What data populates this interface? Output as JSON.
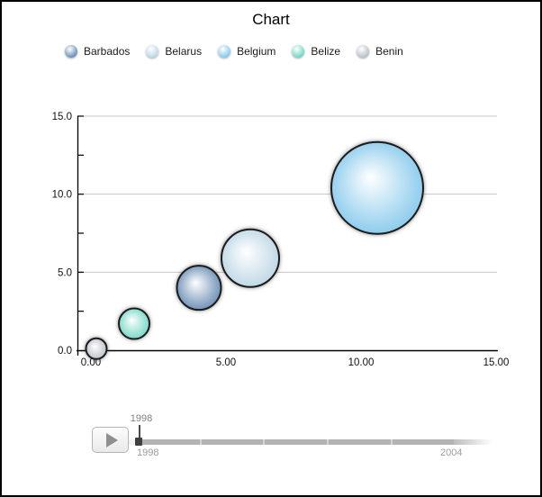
{
  "window": {
    "title": "Chart"
  },
  "colors": {
    "grid": "#c6c6c6",
    "axis": "#000000",
    "track": "#b3b3b3",
    "handle": "#3f3f3f"
  },
  "chart_data": {
    "type": "bubble",
    "title": "Chart",
    "xlabel": "",
    "ylabel": "",
    "x_ticks": [
      "0.00",
      "5.00",
      "10.00",
      "15.00"
    ],
    "y_ticks": [
      "0.0",
      "5.0",
      "10.0",
      "15.0"
    ],
    "xlim": [
      -0.5,
      15.0
    ],
    "ylim": [
      0,
      15.0
    ],
    "grid": true,
    "legend_position": "top",
    "series": [
      {
        "name": "Barbados",
        "x": 4.0,
        "y": 4.0,
        "radius_px": 24.5,
        "color": "#5b82ad"
      },
      {
        "name": "Belarus",
        "x": 5.9,
        "y": 5.9,
        "radius_px": 32,
        "color": "#b7d3e3"
      },
      {
        "name": "Belgium",
        "x": 10.6,
        "y": 10.4,
        "radius_px": 51,
        "color": "#7cc4ea"
      },
      {
        "name": "Belize",
        "x": 1.6,
        "y": 1.7,
        "radius_px": 17,
        "color": "#63d3bd"
      },
      {
        "name": "Benin",
        "x": 0.2,
        "y": 0.1,
        "radius_px": 11.5,
        "color": "#b4bac3"
      }
    ]
  },
  "slider": {
    "current_year": "1998",
    "range_start": "1998",
    "range_end": "2004",
    "play_icon": "play-icon"
  }
}
